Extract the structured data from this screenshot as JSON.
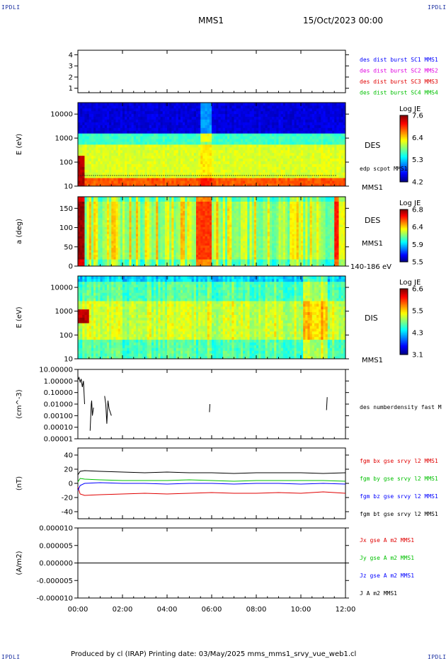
{
  "header": {
    "corner_tl": "IPDLI",
    "corner_tr": "IPDLI",
    "corner_bl": "IPDLI",
    "corner_br": "IPDLI",
    "spacecraft": "MMS1",
    "date": "15/Oct/2023 00:00"
  },
  "footer": {
    "text": "Produced by cl (IRAP)   Printing date: 03/May/2025   mms_mms1_srvy_vue_web1.cl"
  },
  "colors": {
    "frame": "#000000",
    "blue": "#0000ff",
    "magenta": "#e000e0",
    "red": "#e00000",
    "green": "#00c000",
    "black": "#000000"
  },
  "chart_data": [
    {
      "type": "line",
      "ylabel": "",
      "yticks": [
        "1",
        "2",
        "3",
        "4"
      ],
      "ylim": [
        0.6,
        4.4
      ],
      "legend": [
        {
          "text": "des dist burst SC1 MMS1",
          "color": "#0000ff"
        },
        {
          "text": "des dist burst SC2 MMS2",
          "color": "#e000e0"
        },
        {
          "text": "des dist burst SC3 MMS3",
          "color": "#e00000"
        },
        {
          "text": "des dist burst SC4 MMS4",
          "color": "#00c000"
        }
      ]
    },
    {
      "type": "heatmap",
      "ylabel": "E (eV)",
      "yscale": "log",
      "ylim": [
        10,
        30000
      ],
      "yticks": [
        "10",
        "100",
        "1000",
        "10000"
      ],
      "right_labels": [
        "DES",
        "edp scpot MMS1",
        "MMS1"
      ],
      "colorbar": {
        "title": "Log JE",
        "ticks": [
          "7.6",
          "6.4",
          "5.3",
          "4.2"
        ],
        "range": [
          4.2,
          7.6
        ]
      }
    },
    {
      "type": "heatmap",
      "ylabel": "a (deg)",
      "ylim": [
        0,
        180
      ],
      "yticks": [
        "0",
        "50",
        "100",
        "150"
      ],
      "right_labels": [
        "DES",
        "MMS1",
        "140-186 eV"
      ],
      "colorbar": {
        "title": "Log JE",
        "ticks": [
          "6.8",
          "6.4",
          "5.9",
          "5.5"
        ],
        "range": [
          5.5,
          6.8
        ]
      }
    },
    {
      "type": "heatmap",
      "ylabel": "E (eV)",
      "yscale": "log",
      "ylim": [
        10,
        30000
      ],
      "yticks": [
        "10",
        "100",
        "1000",
        "10000"
      ],
      "right_labels": [
        "DIS",
        "MMS1"
      ],
      "colorbar": {
        "title": "Log JE",
        "ticks": [
          "6.6",
          "5.5",
          "4.3",
          "3.1"
        ],
        "range": [
          3.1,
          6.6
        ]
      }
    },
    {
      "type": "line",
      "ylabel": "(cm^-3)",
      "yscale": "log",
      "ylim": [
        1e-05,
        10
      ],
      "yticks": [
        "0.00001",
        "0.00010",
        "0.00100",
        "0.01000",
        "0.10000",
        "1.00000",
        "10.00000"
      ],
      "legend": [
        {
          "text": "des numberdensity fast M",
          "color": "#000000"
        }
      ],
      "series": [
        {
          "name": "des numberdensity fast M",
          "segments": [
            {
              "t": [
                0.0,
                0.05,
                0.1,
                0.15,
                0.2,
                0.25,
                0.3
              ],
              "v": [
                1.2,
                2.0,
                0.8,
                1.5,
                0.3,
                1.0,
                0.01
              ]
            },
            {
              "t": [
                0.55,
                0.6,
                0.62,
                0.65,
                0.7
              ],
              "v": [
                5e-05,
                0.01,
                0.02,
                0.001,
                0.005
              ]
            },
            {
              "t": [
                1.2,
                1.25,
                1.3,
                1.35,
                1.4,
                1.5
              ],
              "v": [
                0.05,
                0.01,
                0.0002,
                0.02,
                0.004,
                0.001
              ]
            },
            {
              "t": [
                5.9,
                5.92
              ],
              "v": [
                0.002,
                0.01
              ]
            },
            {
              "t": [
                11.15,
                11.18
              ],
              "v": [
                0.003,
                0.04
              ]
            }
          ]
        }
      ]
    },
    {
      "type": "line",
      "ylabel": "(nT)",
      "ylim": [
        -50,
        50
      ],
      "yticks": [
        "-40",
        "-20",
        "0",
        "20",
        "40"
      ],
      "legend": [
        {
          "text": "fgm bx gse srvy l2 MMS1",
          "color": "#e00000"
        },
        {
          "text": "fgm by gse srvy l2 MMS1",
          "color": "#00c000"
        },
        {
          "text": "fgm bz gse srvy l2 MMS1",
          "color": "#0000ff"
        },
        {
          "text": "fgm bt gse srvy l2 MMS1",
          "color": "#000000"
        }
      ],
      "series": [
        {
          "name": "fgm bx gse srvy l2 MMS1",
          "color": "#e00000",
          "t": [
            0,
            0.1,
            0.3,
            1,
            2,
            3,
            4,
            5,
            6,
            7,
            8,
            9,
            10,
            11,
            11.5,
            12
          ],
          "v": [
            -5,
            -15,
            -17,
            -16,
            -15,
            -14,
            -15,
            -14,
            -13,
            -14,
            -14,
            -13,
            -14,
            -12,
            -13,
            -14
          ]
        },
        {
          "name": "fgm by gse srvy l2 MMS1",
          "color": "#00c000",
          "t": [
            0,
            0.1,
            0.3,
            1,
            2,
            3,
            4,
            5,
            6,
            7,
            8,
            9,
            10,
            11,
            12
          ],
          "v": [
            2,
            7,
            6,
            5,
            4,
            4,
            4,
            5,
            4,
            3,
            4,
            4,
            4,
            4,
            3
          ]
        },
        {
          "name": "fgm bz gse srvy l2 MMS1",
          "color": "#0000ff",
          "t": [
            0,
            0.1,
            0.3,
            1,
            2,
            3,
            4,
            5,
            6,
            7,
            8,
            9,
            10,
            11,
            12
          ],
          "v": [
            -10,
            -3,
            0,
            1,
            0,
            0,
            -1,
            0,
            0,
            -1,
            0,
            0,
            -1,
            0,
            -1
          ]
        },
        {
          "name": "fgm bt gse srvy l2 MMS1",
          "color": "#000000",
          "t": [
            0,
            0.1,
            0.3,
            1,
            2,
            3,
            4,
            5,
            6,
            7,
            8,
            9,
            10,
            11,
            12
          ],
          "v": [
            12,
            17,
            18,
            17,
            16,
            15,
            16,
            15,
            15,
            14,
            15,
            15,
            15,
            14,
            15
          ]
        }
      ]
    },
    {
      "type": "line",
      "ylabel": "(A/m2)",
      "ylim": [
        -1e-05,
        1e-05
      ],
      "yticks": [
        "-0.000010",
        "-0.000005",
        "0.000000",
        "0.000005",
        "0.000010"
      ],
      "legend": [
        {
          "text": "Jx gse A m2 MMS1",
          "color": "#e00000"
        },
        {
          "text": "Jy gse A m2 MMS1",
          "color": "#00c000"
        },
        {
          "text": "Jz gse A m2 MMS1",
          "color": "#0000ff"
        },
        {
          "text": "J A m2 MMS1",
          "color": "#000000"
        }
      ],
      "series": [
        {
          "name": "J A m2 MMS1",
          "color": "#000000",
          "t": [
            0,
            12
          ],
          "v": [
            0,
            0
          ]
        }
      ]
    }
  ],
  "xaxis": {
    "ticks": [
      "00:00",
      "02:00",
      "04:00",
      "06:00",
      "08:00",
      "10:00",
      "12:00"
    ],
    "range": [
      0,
      12
    ]
  }
}
